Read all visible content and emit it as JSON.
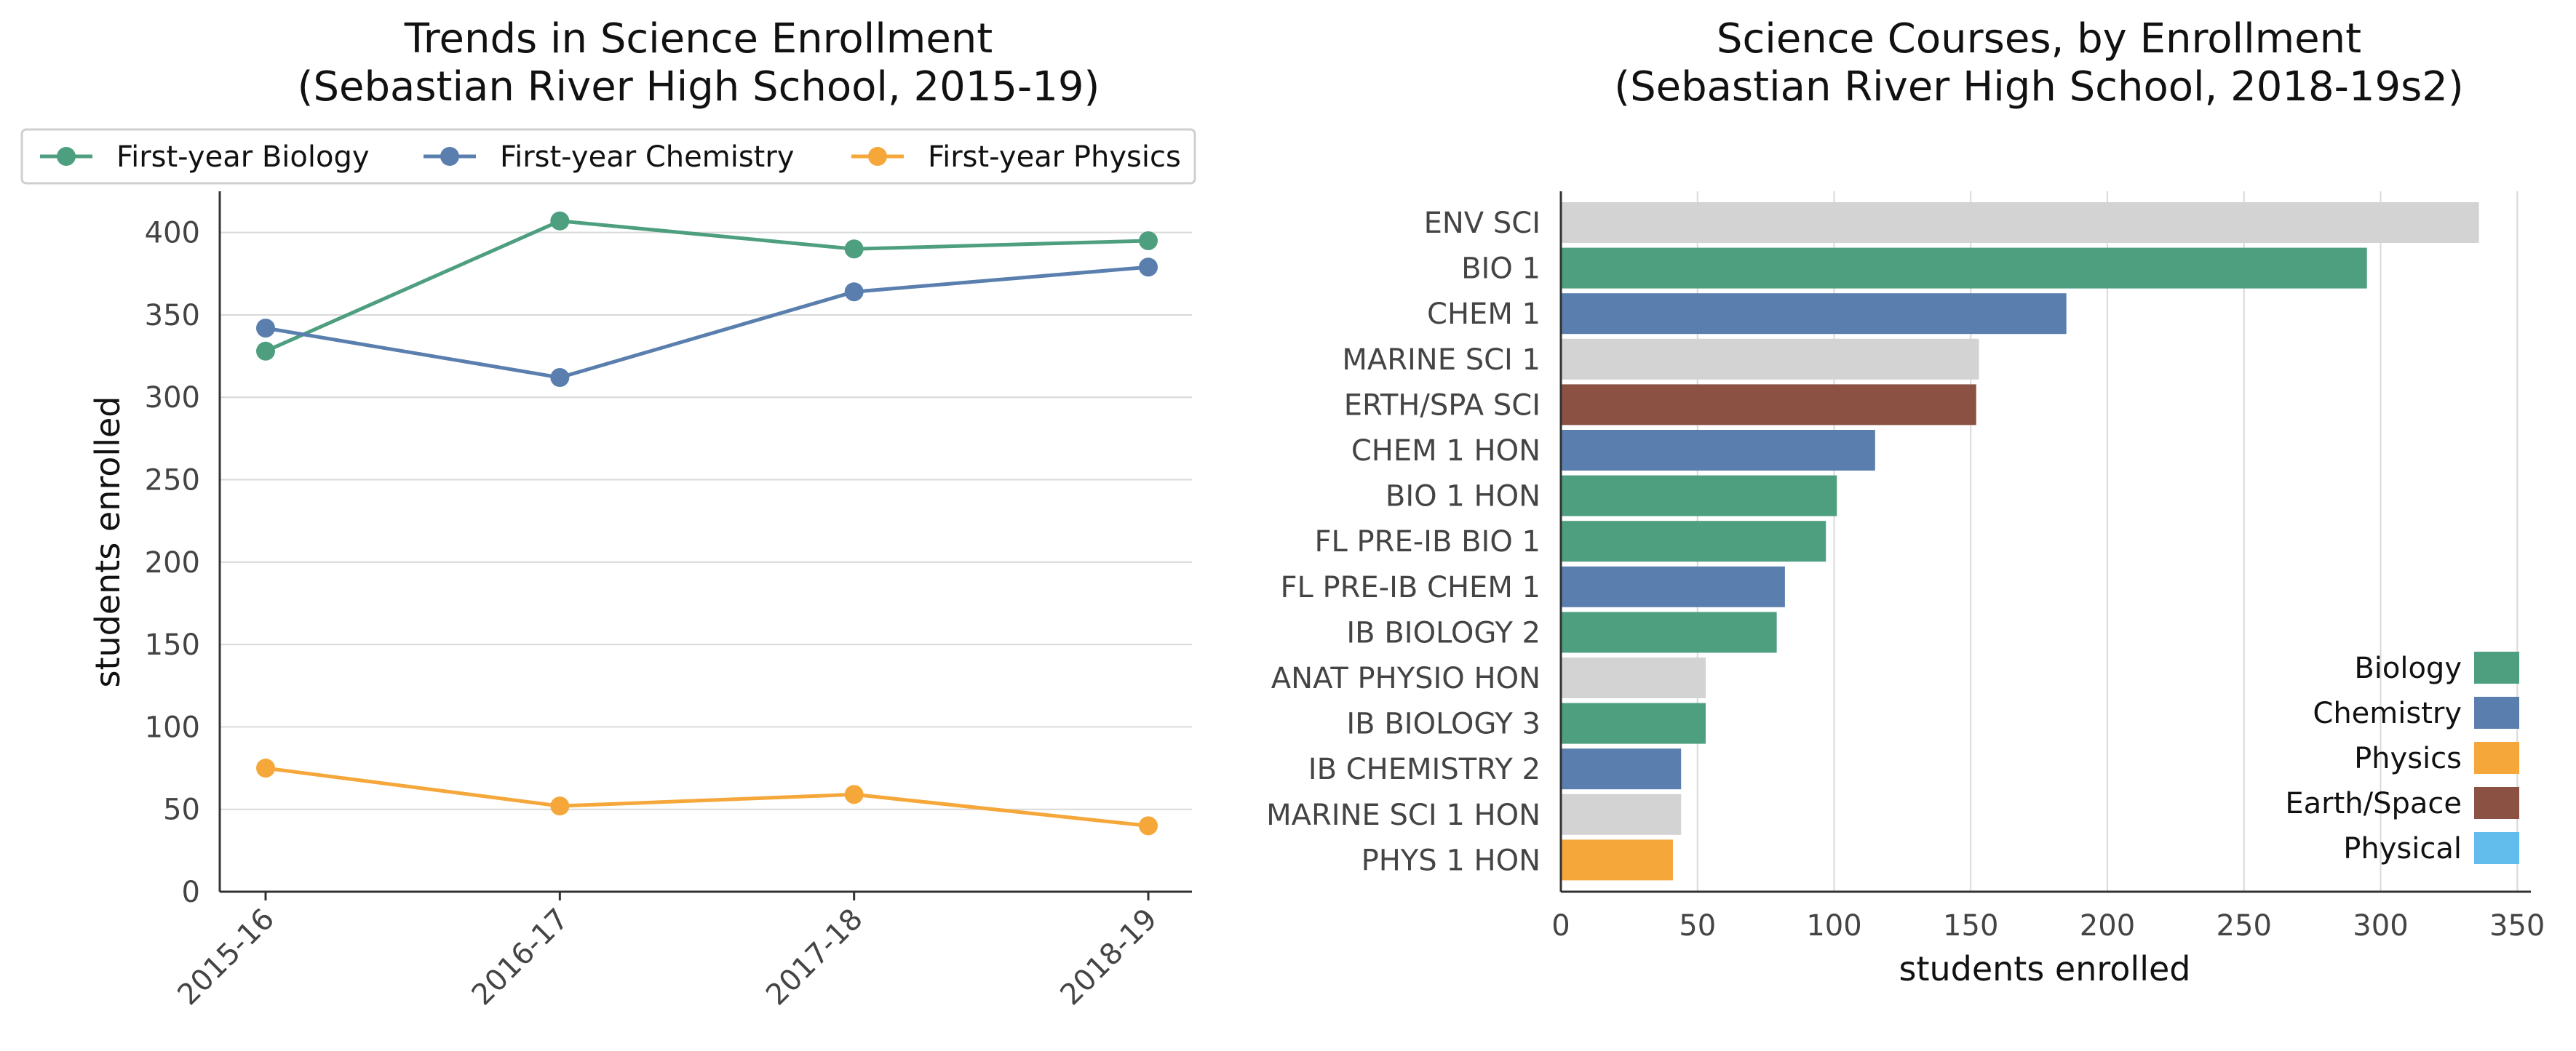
{
  "chart_data": [
    {
      "type": "line",
      "title_line1": "Trends in Science Enrollment",
      "title_line2": "(Sebastian River High School, 2015-19)",
      "xlabel": "",
      "ylabel": "students enrolled",
      "categories": [
        "2015-16",
        "2016-17",
        "2017-18",
        "2018-19"
      ],
      "ylim": [
        0,
        425
      ],
      "yticks": [
        0,
        50,
        100,
        150,
        200,
        250,
        300,
        350,
        400
      ],
      "grid": "horizontal",
      "legend_position": "top",
      "series": [
        {
          "name": "First-year Biology",
          "color": "#4e9f7f",
          "values": [
            328,
            407,
            390,
            395
          ]
        },
        {
          "name": "First-year Chemistry",
          "color": "#5a7fae",
          "values": [
            342,
            312,
            364,
            379
          ]
        },
        {
          "name": "First-year Physics",
          "color": "#f5a73a",
          "values": [
            75,
            52,
            59,
            40
          ]
        }
      ]
    },
    {
      "type": "bar",
      "orientation": "horizontal",
      "title_line1": "Science Courses, by Enrollment",
      "title_line2": "(Sebastian River High School, 2018-19s2)",
      "xlabel": "students enrolled",
      "ylabel": "",
      "xlim": [
        0,
        355
      ],
      "xticks": [
        0,
        50,
        100,
        150,
        200,
        250,
        300,
        350
      ],
      "grid": "vertical",
      "legend_position": "lower-right",
      "categories": [
        "ENV SCI",
        "BIO 1",
        "CHEM 1",
        "MARINE SCI 1",
        "ERTH/SPA SCI",
        "CHEM 1 HON",
        "BIO 1 HON",
        "FL PRE-IB BIO 1",
        "FL PRE-IB CHEM 1",
        "IB BIOLOGY 2",
        "ANAT PHYSIO HON",
        "IB BIOLOGY 3",
        "IB CHEMISTRY 2",
        "MARINE SCI 1 HON",
        "PHYS 1 HON"
      ],
      "values": [
        336,
        295,
        185,
        153,
        152,
        115,
        101,
        97,
        82,
        79,
        53,
        53,
        44,
        44,
        41
      ],
      "groups": [
        "Other",
        "Biology",
        "Chemistry",
        "Other",
        "Earth/Space",
        "Chemistry",
        "Biology",
        "Biology",
        "Chemistry",
        "Biology",
        "Other",
        "Biology",
        "Chemistry",
        "Other",
        "Physics"
      ],
      "group_colors": {
        "Biology": "#4e9f7f",
        "Chemistry": "#5a7fae",
        "Physics": "#f5a73a",
        "Earth/Space": "#8b5243",
        "Physical": "#62bdec",
        "Other": "#d3d3d3"
      },
      "legend": [
        "Biology",
        "Chemistry",
        "Physics",
        "Earth/Space",
        "Physical"
      ]
    }
  ]
}
